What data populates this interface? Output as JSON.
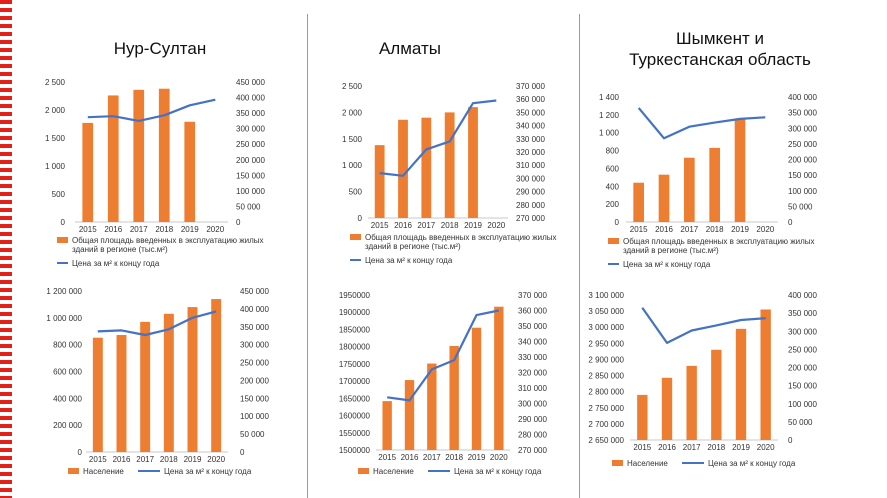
{
  "colors": {
    "bar": "#ED7D31",
    "line": "#4472C4",
    "stripe": "#e32119",
    "divider": "#9a9a9a"
  },
  "regions": [
    {
      "title": "Нур-Султан"
    },
    {
      "title": "Алматы"
    },
    {
      "title_lines": [
        "Шымкент и",
        "Туркестанская область"
      ]
    }
  ],
  "chart_data": [
    {
      "type": "bar",
      "region": "Нур-Султан",
      "categories": [
        "2015",
        "2016",
        "2017",
        "2018",
        "2019",
        "2020"
      ],
      "series": [
        {
          "name": "Общая площадь введенных в эксплуатацию жилых зданий в регионе (тыс.м²)",
          "kind": "bar",
          "axis": "left",
          "values": [
            1770,
            2260,
            2360,
            2380,
            1790,
            null
          ]
        },
        {
          "name": "Цена за м² к концу года",
          "kind": "line",
          "axis": "right",
          "values": [
            337000,
            340000,
            325000,
            343000,
            375000,
            393000
          ]
        }
      ],
      "left_axis": {
        "min": 0,
        "max": 2500,
        "ticks": [
          "0",
          "500",
          "1 000",
          "1 500",
          "2 000",
          "2 500"
        ]
      },
      "right_axis": {
        "min": 0,
        "max": 450000,
        "ticks": [
          "0",
          "50 000",
          "100 000",
          "150 000",
          "200 000",
          "250 000",
          "300 000",
          "350 000",
          "400 000",
          "450 000"
        ]
      },
      "legend": [
        "Общая площадь введенных в эксплуатацию жилых",
        "зданий в регионе (тыс.м²)",
        "Цена за м² к концу года"
      ]
    },
    {
      "type": "bar",
      "region": "Алматы",
      "categories": [
        "2015",
        "2016",
        "2017",
        "2018",
        "2019",
        "2020"
      ],
      "series": [
        {
          "name": "Общая площадь введенных в эксплуатацию жилых зданий в регионе (тыс.м²)",
          "kind": "bar",
          "axis": "left",
          "values": [
            1380,
            1860,
            1900,
            2000,
            2100,
            null
          ]
        },
        {
          "name": "Цена за м² к концу года",
          "kind": "line",
          "axis": "right",
          "values": [
            304000,
            302000,
            322000,
            328000,
            357000,
            359000
          ]
        }
      ],
      "left_axis": {
        "min": 0,
        "max": 2500,
        "ticks": [
          "0",
          "500",
          "1 000",
          "1 500",
          "2 000",
          "2 500"
        ]
      },
      "right_axis": {
        "min": 270000,
        "max": 370000,
        "ticks": [
          "270 000",
          "280 000",
          "290 000",
          "300 000",
          "310 000",
          "320 000",
          "330 000",
          "340 000",
          "350 000",
          "360 000",
          "370 000"
        ]
      },
      "legend": [
        "Общая площадь введенных в эксплуатацию жилых",
        "зданий в регионе (тыс.м²)",
        "Цена за м² к концу года"
      ]
    },
    {
      "type": "bar",
      "region": "Шымкент и Туркестанская область",
      "categories": [
        "2015",
        "2016",
        "2017",
        "2018",
        "2019",
        "2020"
      ],
      "series": [
        {
          "name": "Общая площадь введенных в эксплуатацию жилых зданий в регионе (тыс.м²)",
          "kind": "bar",
          "axis": "left",
          "values": [
            440,
            530,
            720,
            830,
            1150,
            null
          ]
        },
        {
          "name": "Цена за м² к концу года",
          "kind": "line",
          "axis": "right",
          "values": [
            365000,
            268000,
            305000,
            318000,
            330000,
            335000
          ]
        }
      ],
      "left_axis": {
        "min": 0,
        "max": 1400,
        "ticks": [
          "0",
          "200",
          "400",
          "600",
          "800",
          "1 000",
          "1 200",
          "1 400"
        ]
      },
      "right_axis": {
        "min": 0,
        "max": 400000,
        "ticks": [
          "0",
          "50 000",
          "100 000",
          "150 000",
          "200 000",
          "250 000",
          "300 000",
          "350 000",
          "400 000"
        ]
      },
      "legend": [
        "Общая площадь введенных в эксплуатацию жилых",
        "зданий в регионе (тыс.м²)",
        "Цена за м² к концу года"
      ]
    },
    {
      "type": "bar",
      "region": "Нур-Султан",
      "categories": [
        "2015",
        "2016",
        "2017",
        "2018",
        "2019",
        "2020"
      ],
      "series": [
        {
          "name": "Население",
          "kind": "bar",
          "axis": "left",
          "values": [
            852000,
            872000,
            970000,
            1030000,
            1080000,
            1140000
          ]
        },
        {
          "name": "Цена за м² к концу года",
          "kind": "line",
          "axis": "right",
          "values": [
            337000,
            340000,
            327000,
            343000,
            375000,
            393000
          ]
        }
      ],
      "left_axis": {
        "min": 0,
        "max": 1200000,
        "ticks": [
          "0",
          "200 000",
          "400 000",
          "600 000",
          "800 000",
          "1 000 000",
          "1 200 000"
        ]
      },
      "right_axis": {
        "min": 0,
        "max": 450000,
        "ticks": [
          "0",
          "50 000",
          "100 000",
          "150 000",
          "200 000",
          "250 000",
          "300 000",
          "350 000",
          "400 000",
          "450 000"
        ]
      },
      "legend": [
        "Население",
        "Цена за м² к концу года"
      ]
    },
    {
      "type": "bar",
      "region": "Алматы",
      "categories": [
        "2015",
        "2016",
        "2017",
        "2018",
        "2019",
        "2020"
      ],
      "series": [
        {
          "name": "Население",
          "kind": "bar",
          "axis": "left",
          "values": [
            1642000,
            1703000,
            1751000,
            1802000,
            1855000,
            1916000
          ]
        },
        {
          "name": "Цена за м² к концу года",
          "kind": "line",
          "axis": "right",
          "values": [
            304000,
            302000,
            322000,
            328000,
            357000,
            360000
          ]
        }
      ],
      "left_axis": {
        "min": 1500000,
        "max": 1950000,
        "ticks": [
          "1500000",
          "1550000",
          "1600000",
          "1650000",
          "1700000",
          "1750000",
          "1800000",
          "1850000",
          "1900000",
          "1950000"
        ]
      },
      "right_axis": {
        "min": 270000,
        "max": 370000,
        "ticks": [
          "270 000",
          "280 000",
          "290 000",
          "300 000",
          "310 000",
          "320 000",
          "330 000",
          "340 000",
          "350 000",
          "360 000",
          "370 000"
        ]
      },
      "legend": [
        "Население",
        "Цена за м² к концу года"
      ]
    },
    {
      "type": "bar",
      "region": "Шымкент и Туркестанская область",
      "categories": [
        "2015",
        "2016",
        "2017",
        "2018",
        "2019",
        "2020"
      ],
      "series": [
        {
          "name": "Население",
          "kind": "bar",
          "axis": "left",
          "values": [
            2790000,
            2843000,
            2880000,
            2930000,
            2995000,
            3055000
          ]
        },
        {
          "name": "Цена за м² к концу года",
          "kind": "line",
          "axis": "right",
          "values": [
            365000,
            268000,
            302000,
            316000,
            331000,
            336000
          ]
        }
      ],
      "left_axis": {
        "min": 2650000,
        "max": 3100000,
        "ticks": [
          "2 650 000",
          "2 700 000",
          "2 750 000",
          "2 800 000",
          "2 850 000",
          "2 900 000",
          "2 950 000",
          "3 000 000",
          "3 050 000",
          "3 100 000"
        ]
      },
      "right_axis": {
        "min": 0,
        "max": 400000,
        "ticks": [
          "0",
          "50 000",
          "100 000",
          "150 000",
          "200 000",
          "250 000",
          "300 000",
          "350 000",
          "400 000"
        ]
      },
      "legend": [
        "Население",
        "Цена за м² к концу года"
      ]
    }
  ]
}
